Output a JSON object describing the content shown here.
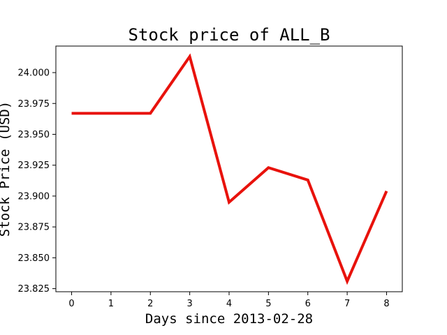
{
  "chart_data": {
    "type": "line",
    "title": "Stock price of ALL_B",
    "xlabel": "Days since 2013-02-28",
    "ylabel": "Stock Price (USD)",
    "x": [
      0,
      1,
      2,
      3,
      4,
      5,
      6,
      7,
      8
    ],
    "series": [
      {
        "values": [
          23.967,
          23.967,
          23.967,
          24.013,
          23.895,
          23.923,
          23.913,
          23.831,
          23.904
        ],
        "color": "#e8120c"
      }
    ],
    "xlim": [
      -0.4,
      8.4
    ],
    "ylim": [
      23.8225,
      24.0215
    ],
    "x_ticks": [
      "0",
      "1",
      "2",
      "3",
      "4",
      "5",
      "6",
      "7",
      "8"
    ],
    "y_ticks": [
      "23.825",
      "23.850",
      "23.875",
      "23.900",
      "23.925",
      "23.950",
      "23.975",
      "24.000"
    ],
    "grid": false,
    "legend": "none"
  }
}
